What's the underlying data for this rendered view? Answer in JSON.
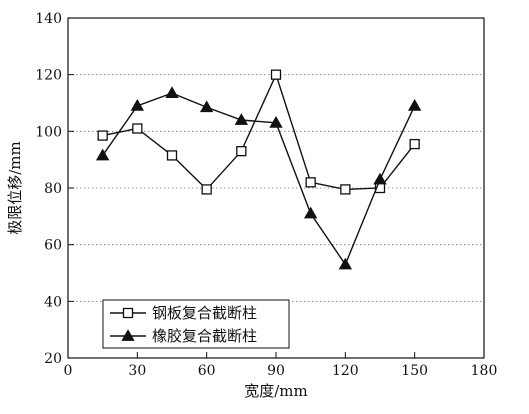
{
  "chart_data": {
    "type": "line",
    "xlabel": "宽度/mm",
    "ylabel": "极限位移/mm",
    "xlim": [
      0,
      180
    ],
    "ylim": [
      20,
      140
    ],
    "xticks": [
      0,
      30,
      60,
      90,
      120,
      150,
      180
    ],
    "yticks": [
      20,
      40,
      60,
      80,
      100,
      120,
      140
    ],
    "grid": "horizontal-dotted",
    "legend_position": "bottom-left",
    "x": [
      15,
      30,
      45,
      60,
      75,
      90,
      105,
      120,
      135,
      150
    ],
    "series": [
      {
        "name": "钢板复合截断柱",
        "marker": "open-square",
        "color": "#111111",
        "values": [
          98.5,
          101,
          91.5,
          79.5,
          93,
          120,
          82,
          79.5,
          80,
          95.5
        ]
      },
      {
        "name": "橡胶复合截断柱",
        "marker": "filled-triangle",
        "color": "#111111",
        "values": [
          91.5,
          109,
          113.5,
          108.5,
          104,
          103,
          71,
          53,
          83,
          109
        ]
      }
    ]
  }
}
